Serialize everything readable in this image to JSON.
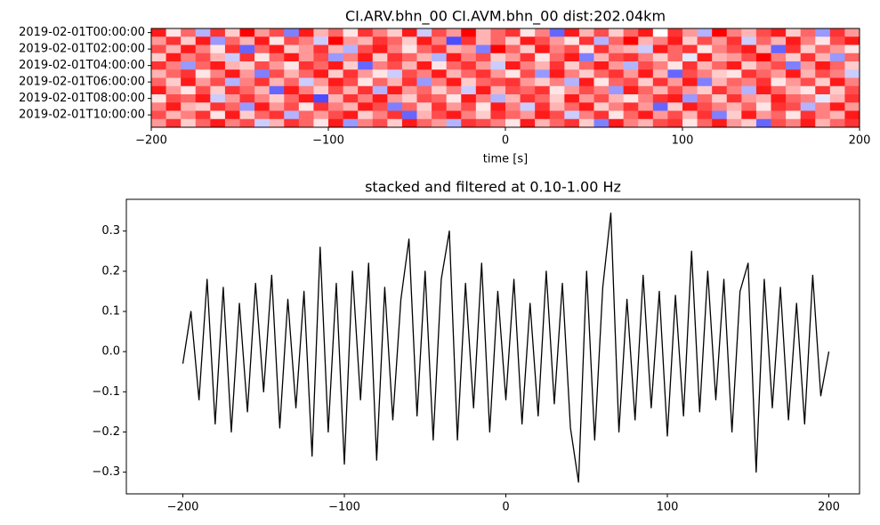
{
  "chart_data": [
    {
      "type": "heatmap",
      "title": "CI.ARV.bhn_00 CI.AVM.bhn_00  dist:202.04km",
      "xlabel": "time [s]",
      "xlim": [
        -200,
        200
      ],
      "xticks": [
        {
          "value": -200,
          "label": "−200"
        },
        {
          "value": -100,
          "label": "−100"
        },
        0,
        100,
        200
      ],
      "categories": [
        "2019-02-01T00:00:00",
        null,
        "2019-02-01T02:00:00",
        null,
        "2019-02-01T04:00:00",
        null,
        "2019-02-01T06:00:00",
        null,
        "2019-02-01T08:00:00",
        null,
        "2019-02-01T10:00:00",
        null
      ],
      "zlim": [
        -1,
        1
      ],
      "colors": [
        "#0000ff",
        "#ffffff",
        "#ff0000"
      ],
      "z": [
        [
          0.9,
          0.1,
          0.6,
          -0.3,
          0.8,
          0.2,
          1.0,
          0.4,
          0.7,
          -0.5,
          0.9,
          0.3,
          0.6,
          0.1,
          0.8,
          0.5,
          0.2,
          0.9,
          -0.2,
          0.7,
          0.4,
          1.0,
          0.3,
          0.6,
          0.8,
          0.1,
          0.5,
          -0.6,
          0.9,
          0.3,
          0.7,
          0.2,
          0.6,
          0.9,
          0.0,
          0.8,
          0.4,
          -0.3,
          1.0,
          0.5,
          0.3,
          0.7,
          0.9,
          0.2,
          0.6,
          -0.4,
          0.8,
          0.4
        ],
        [
          0.4,
          0.8,
          0.2,
          0.9,
          -0.4,
          0.6,
          0.3,
          0.9,
          0.1,
          0.7,
          0.5,
          -0.2,
          1.0,
          0.4,
          0.3,
          0.8,
          0.6,
          0.2,
          0.9,
          0.5,
          -0.7,
          0.8,
          0.3,
          0.6,
          0.2,
          0.9,
          0.7,
          0.4,
          0.1,
          0.8,
          -0.3,
          0.6,
          1.0,
          0.3,
          0.5,
          0.9,
          0.2,
          0.7,
          0.4,
          0.8,
          -0.2,
          0.6,
          0.3,
          0.9,
          0.5,
          0.1,
          0.7,
          0.9
        ],
        [
          0.7,
          0.3,
          0.9,
          0.5,
          0.1,
          0.8,
          -0.6,
          0.6,
          0.9,
          0.2,
          0.4,
          0.8,
          0.3,
          -0.3,
          0.7,
          0.9,
          0.5,
          0.1,
          0.6,
          0.8,
          0.3,
          0.4,
          -0.5,
          1.0,
          0.6,
          0.2,
          0.9,
          0.5,
          0.7,
          0.1,
          0.8,
          0.4,
          0.3,
          -0.2,
          0.9,
          0.6,
          0.8,
          0.1,
          0.5,
          0.7,
          0.9,
          0.3,
          -0.6,
          0.8,
          0.2,
          0.6,
          0.4,
          0.1
        ],
        [
          0.2,
          0.9,
          0.5,
          0.7,
          0.3,
          -0.2,
          0.8,
          0.1,
          0.6,
          0.9,
          0.4,
          0.7,
          -0.4,
          0.5,
          0.9,
          0.2,
          0.8,
          0.6,
          0.3,
          -0.3,
          0.9,
          0.5,
          0.7,
          0.2,
          0.4,
          0.8,
          0.1,
          0.6,
          0.9,
          -0.5,
          0.3,
          0.7,
          0.8,
          0.5,
          0.2,
          0.6,
          -0.1,
          0.9,
          0.3,
          0.4,
          0.7,
          1.0,
          0.5,
          0.2,
          0.8,
          0.3,
          -0.4,
          0.6
        ],
        [
          0.8,
          0.5,
          -0.4,
          0.6,
          0.9,
          0.3,
          0.2,
          0.7,
          0.4,
          0.1,
          0.8,
          0.6,
          0.9,
          0.2,
          -0.6,
          0.5,
          0.7,
          0.3,
          0.9,
          0.1,
          0.6,
          0.8,
          0.4,
          -0.2,
          0.9,
          0.5,
          0.3,
          0.8,
          0.2,
          0.6,
          0.9,
          0.4,
          -0.3,
          0.7,
          0.5,
          0.1,
          0.8,
          0.3,
          0.6,
          0.9,
          0.2,
          0.5,
          0.7,
          -0.5,
          0.4,
          0.9,
          0.6,
          0.2
        ],
        [
          0.3,
          0.6,
          0.8,
          0.1,
          0.5,
          0.9,
          0.4,
          -0.5,
          0.7,
          0.3,
          0.6,
          0.9,
          0.2,
          0.8,
          0.4,
          0.1,
          -0.2,
          0.7,
          0.5,
          0.9,
          0.3,
          0.6,
          0.8,
          0.4,
          0.1,
          0.7,
          -0.4,
          0.9,
          0.5,
          0.2,
          0.6,
          0.8,
          0.4,
          0.9,
          0.3,
          -0.6,
          0.7,
          0.5,
          0.2,
          0.1,
          0.8,
          0.6,
          0.4,
          0.9,
          0.3,
          0.7,
          0.5,
          -0.2
        ],
        [
          0.6,
          0.2,
          0.9,
          0.4,
          0.7,
          -0.3,
          0.5,
          0.8,
          0.3,
          0.6,
          -0.2,
          0.4,
          0.9,
          0.7,
          0.1,
          0.6,
          0.3,
          0.8,
          -0.4,
          0.5,
          0.9,
          0.2,
          0.6,
          0.7,
          0.8,
          0.4,
          0.2,
          0.5,
          -0.3,
          0.9,
          0.1,
          0.6,
          0.7,
          0.2,
          0.8,
          0.4,
          0.9,
          -0.5,
          0.3,
          0.6,
          0.5,
          0.8,
          0.1,
          0.4,
          0.7,
          0.2,
          0.9,
          0.5
        ],
        [
          0.9,
          0.4,
          0.1,
          0.7,
          0.2,
          0.8,
          0.6,
          0.3,
          -0.6,
          0.9,
          0.5,
          0.2,
          0.7,
          0.3,
          0.8,
          -0.3,
          0.9,
          0.4,
          0.6,
          0.2,
          0.5,
          -0.2,
          0.9,
          0.3,
          0.7,
          0.6,
          0.8,
          0.1,
          0.4,
          0.7,
          0.5,
          -0.4,
          0.9,
          0.6,
          0.3,
          0.7,
          0.4,
          0.2,
          0.8,
          0.5,
          -0.3,
          0.9,
          0.6,
          0.3,
          0.1,
          0.8,
          0.2,
          0.7
        ],
        [
          0.1,
          0.7,
          0.6,
          0.9,
          -0.2,
          0.4,
          0.8,
          0.5,
          0.2,
          0.6,
          0.9,
          -0.7,
          0.3,
          0.8,
          0.5,
          0.9,
          0.4,
          0.2,
          0.7,
          0.6,
          0.1,
          0.9,
          0.5,
          -0.3,
          0.3,
          0.8,
          0.6,
          0.2,
          0.9,
          0.4,
          0.7,
          0.3,
          0.1,
          0.5,
          0.8,
          0.9,
          -0.4,
          0.6,
          0.2,
          0.8,
          0.4,
          0.3,
          0.9,
          0.6,
          0.5,
          -0.1,
          0.3,
          0.8
        ],
        [
          0.5,
          0.9,
          0.3,
          0.2,
          0.8,
          0.6,
          -0.4,
          0.9,
          0.4,
          0.7,
          0.1,
          0.8,
          0.5,
          0.3,
          0.9,
          0.7,
          -0.5,
          0.6,
          0.2,
          0.8,
          0.4,
          0.7,
          0.1,
          0.9,
          0.5,
          -0.2,
          0.8,
          0.3,
          0.6,
          0.9,
          0.2,
          0.5,
          0.8,
          0.4,
          -0.6,
          0.2,
          0.9,
          0.7,
          0.5,
          0.3,
          0.6,
          0.1,
          0.8,
          0.7,
          -0.3,
          0.5,
          0.9,
          0.4
        ],
        [
          0.7,
          0.3,
          0.5,
          0.8,
          0.1,
          0.9,
          0.2,
          0.6,
          0.8,
          -0.3,
          0.6,
          0.4,
          0.7,
          0.9,
          0.2,
          0.5,
          0.8,
          -0.6,
          0.3,
          0.7,
          0.9,
          0.5,
          0.2,
          0.8,
          0.6,
          0.4,
          0.9,
          0.7,
          -0.2,
          0.5,
          0.8,
          0.1,
          0.6,
          0.9,
          0.4,
          0.7,
          0.3,
          0.8,
          -0.5,
          0.2,
          0.9,
          0.4,
          0.6,
          0.1,
          0.8,
          0.5,
          0.3,
          0.9
        ],
        [
          0.4,
          0.8,
          0.2,
          0.6,
          0.9,
          0.5,
          0.7,
          -0.2,
          0.3,
          0.8,
          0.6,
          0.1,
          0.9,
          -0.4,
          0.5,
          0.7,
          0.2,
          0.9,
          0.6,
          0.4,
          -0.3,
          0.8,
          0.7,
          0.5,
          0.1,
          0.9,
          0.3,
          0.6,
          0.8,
          0.2,
          -0.5,
          0.9,
          0.5,
          0.3,
          0.7,
          0.8,
          0.1,
          0.6,
          0.9,
          0.4,
          0.2,
          -0.6,
          0.7,
          0.5,
          0.9,
          0.3,
          0.6,
          0.8
        ]
      ]
    },
    {
      "type": "line",
      "title": "stacked and filtered at 0.10-1.00 Hz",
      "color": "#000000",
      "xlim": [
        -235,
        219
      ],
      "xticks": [
        {
          "value": -200,
          "label": "−200"
        },
        {
          "value": -100,
          "label": "−100"
        },
        0,
        100,
        200
      ],
      "ylim": [
        -0.354,
        0.379
      ],
      "yticks": [
        {
          "value": -0.3,
          "label": "−0.3"
        },
        {
          "value": -0.2,
          "label": "−0.2"
        },
        {
          "value": -0.1,
          "label": "−0.1"
        },
        {
          "value": 0,
          "label": "0.0"
        },
        0.1,
        0.2,
        0.3
      ],
      "x": [
        -200,
        -195,
        -190,
        -185,
        -180,
        -175,
        -170,
        -165,
        -160,
        -155,
        -150,
        -145,
        -140,
        -135,
        -130,
        -125,
        -120,
        -115,
        -110,
        -105,
        -100,
        -95,
        -90,
        -85,
        -80,
        -75,
        -70,
        -65,
        -60,
        -55,
        -50,
        -45,
        -40,
        -35,
        -30,
        -25,
        -20,
        -15,
        -10,
        -5,
        0,
        5,
        10,
        15,
        20,
        25,
        30,
        35,
        40,
        45,
        50,
        55,
        60,
        65,
        70,
        75,
        80,
        85,
        90,
        95,
        100,
        105,
        110,
        115,
        120,
        125,
        130,
        135,
        140,
        145,
        150,
        155,
        160,
        165,
        170,
        175,
        180,
        185,
        190,
        195,
        200
      ],
      "values": [
        -0.03,
        0.1,
        -0.12,
        0.18,
        -0.18,
        0.16,
        -0.2,
        0.12,
        -0.15,
        0.17,
        -0.1,
        0.19,
        -0.19,
        0.13,
        -0.14,
        0.15,
        -0.26,
        0.26,
        -0.2,
        0.17,
        -0.28,
        0.2,
        -0.12,
        0.22,
        -0.27,
        0.16,
        -0.17,
        0.13,
        0.28,
        -0.16,
        0.2,
        -0.22,
        0.18,
        0.3,
        -0.22,
        0.17,
        -0.14,
        0.22,
        -0.2,
        0.15,
        -0.12,
        0.18,
        -0.18,
        0.12,
        -0.16,
        0.2,
        -0.13,
        0.17,
        -0.19,
        -0.325,
        0.2,
        -0.22,
        0.16,
        0.345,
        -0.2,
        0.13,
        -0.17,
        0.19,
        -0.14,
        0.15,
        -0.21,
        0.14,
        -0.16,
        0.25,
        -0.15,
        0.2,
        -0.12,
        0.18,
        -0.2,
        0.15,
        0.22,
        -0.3,
        0.18,
        -0.14,
        0.16,
        -0.17,
        0.12,
        -0.18,
        0.19,
        -0.11,
        0.0
      ]
    }
  ]
}
